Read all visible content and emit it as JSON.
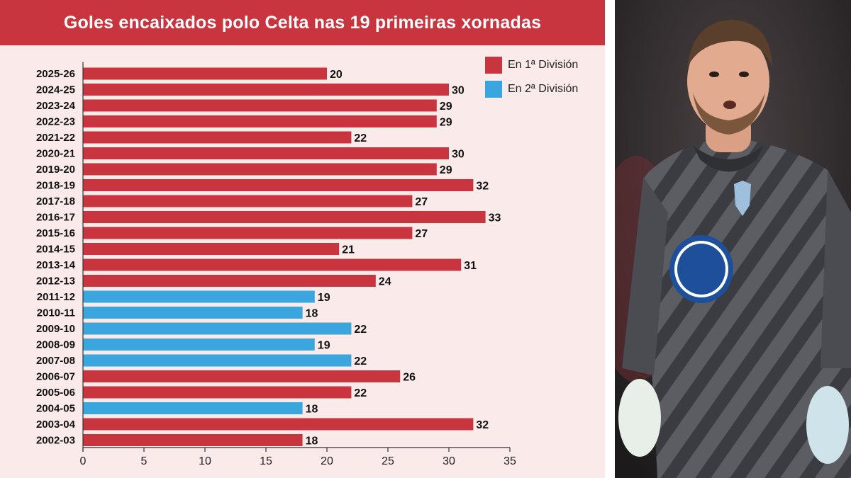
{
  "title": "Goles encaixados polo Celta nas 19 primeiras xornadas",
  "colors": {
    "primera": "#c8353f",
    "segunda": "#3aa6dd",
    "panel_bg": "#fbeaea"
  },
  "legend": {
    "items": [
      {
        "label": "En 1ª División",
        "color": "#c8353f"
      },
      {
        "label": "En 2ª División",
        "color": "#3aa6dd"
      }
    ],
    "placement": "top-right"
  },
  "chart_data": {
    "type": "bar",
    "orientation": "horizontal",
    "title": "Goles encaixados polo Celta nas 19 primeiras xornadas",
    "xlim": [
      0,
      35
    ],
    "xticks": [
      0,
      5,
      10,
      15,
      20,
      25,
      30,
      35
    ],
    "grid": false,
    "categories": [
      "2025-26",
      "2024-25",
      "2023-24",
      "2022-23",
      "2021-22",
      "2020-21",
      "2019-20",
      "2018-19",
      "2017-18",
      "2016-17",
      "2015-16",
      "2014-15",
      "2013-14",
      "2012-13",
      "2011-12",
      "2010-11",
      "2009-10",
      "2008-09",
      "2007-08",
      "2006-07",
      "2005-06",
      "2004-05",
      "2003-04",
      "2002-03"
    ],
    "values": [
      20,
      30,
      29,
      29,
      22,
      30,
      29,
      32,
      27,
      33,
      27,
      21,
      31,
      24,
      19,
      18,
      22,
      19,
      22,
      26,
      22,
      18,
      32,
      18
    ],
    "division": [
      "1",
      "1",
      "1",
      "1",
      "1",
      "1",
      "1",
      "1",
      "1",
      "1",
      "1",
      "1",
      "1",
      "1",
      "2",
      "2",
      "2",
      "2",
      "2",
      "1",
      "1",
      "2",
      "1",
      "1"
    ]
  }
}
